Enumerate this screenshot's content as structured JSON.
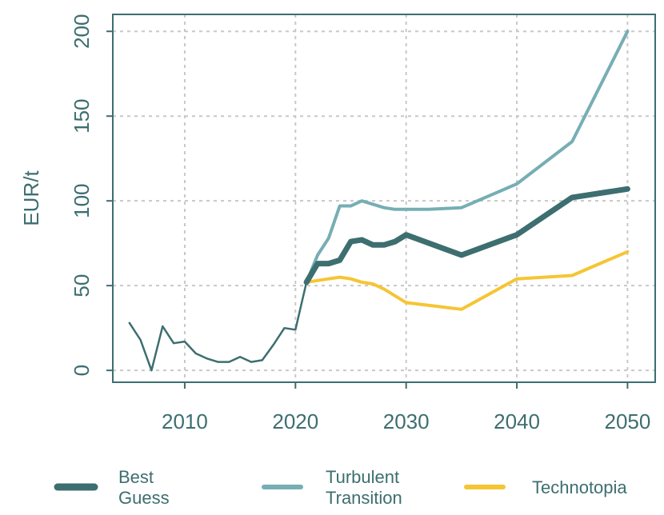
{
  "chart_data": {
    "type": "line",
    "title": "",
    "xlabel": "",
    "ylabel": "EUR/t",
    "xlim": [
      2003.5,
      2052.5
    ],
    "ylim": [
      -7,
      210
    ],
    "x_ticks": [
      2010,
      2020,
      2030,
      2040,
      2050
    ],
    "x_tick_labels": [
      "2010",
      "2020",
      "2030",
      "2040",
      "2050"
    ],
    "y_ticks": [
      0,
      50,
      100,
      150,
      200
    ],
    "y_tick_labels": [
      "0",
      "50",
      "100",
      "150",
      "200"
    ],
    "grid": true,
    "legend_position": "bottom",
    "historical": {
      "color": "#3d6e70",
      "x": [
        2005,
        2006,
        2007,
        2008,
        2009,
        2010,
        2011,
        2012,
        2013,
        2014,
        2015,
        2016,
        2017,
        2018,
        2019,
        2020,
        2021
      ],
      "values": [
        28,
        18,
        0,
        26,
        16,
        17,
        10,
        7,
        5,
        5,
        8,
        5,
        6,
        15,
        25,
        24,
        52
      ]
    },
    "series": [
      {
        "name": "Best Guess",
        "color": "#3d6e70",
        "x": [
          2021,
          2022,
          2023,
          2024,
          2025,
          2026,
          2027,
          2028,
          2029,
          2030,
          2035,
          2040,
          2045,
          2050
        ],
        "values": [
          52,
          63,
          63,
          65,
          76,
          77,
          74,
          74,
          76,
          80,
          68,
          80,
          102,
          107
        ]
      },
      {
        "name": "Turbulent Transition",
        "color": "#76aeb4",
        "x": [
          2021,
          2022,
          2023,
          2024,
          2025,
          2026,
          2027,
          2028,
          2029,
          2030,
          2032,
          2035,
          2040,
          2045,
          2050
        ],
        "values": [
          52,
          68,
          78,
          97,
          97,
          100,
          98,
          96,
          95,
          95,
          95,
          96,
          110,
          135,
          200
        ]
      },
      {
        "name": "Technotopia",
        "color": "#f5c533",
        "x": [
          2021,
          2022,
          2023,
          2024,
          2025,
          2026,
          2027,
          2028,
          2029,
          2030,
          2035,
          2040,
          2045,
          2050
        ],
        "values": [
          52,
          53,
          54,
          55,
          54,
          52,
          51,
          48,
          44,
          40,
          36,
          54,
          56,
          70
        ]
      }
    ]
  }
}
